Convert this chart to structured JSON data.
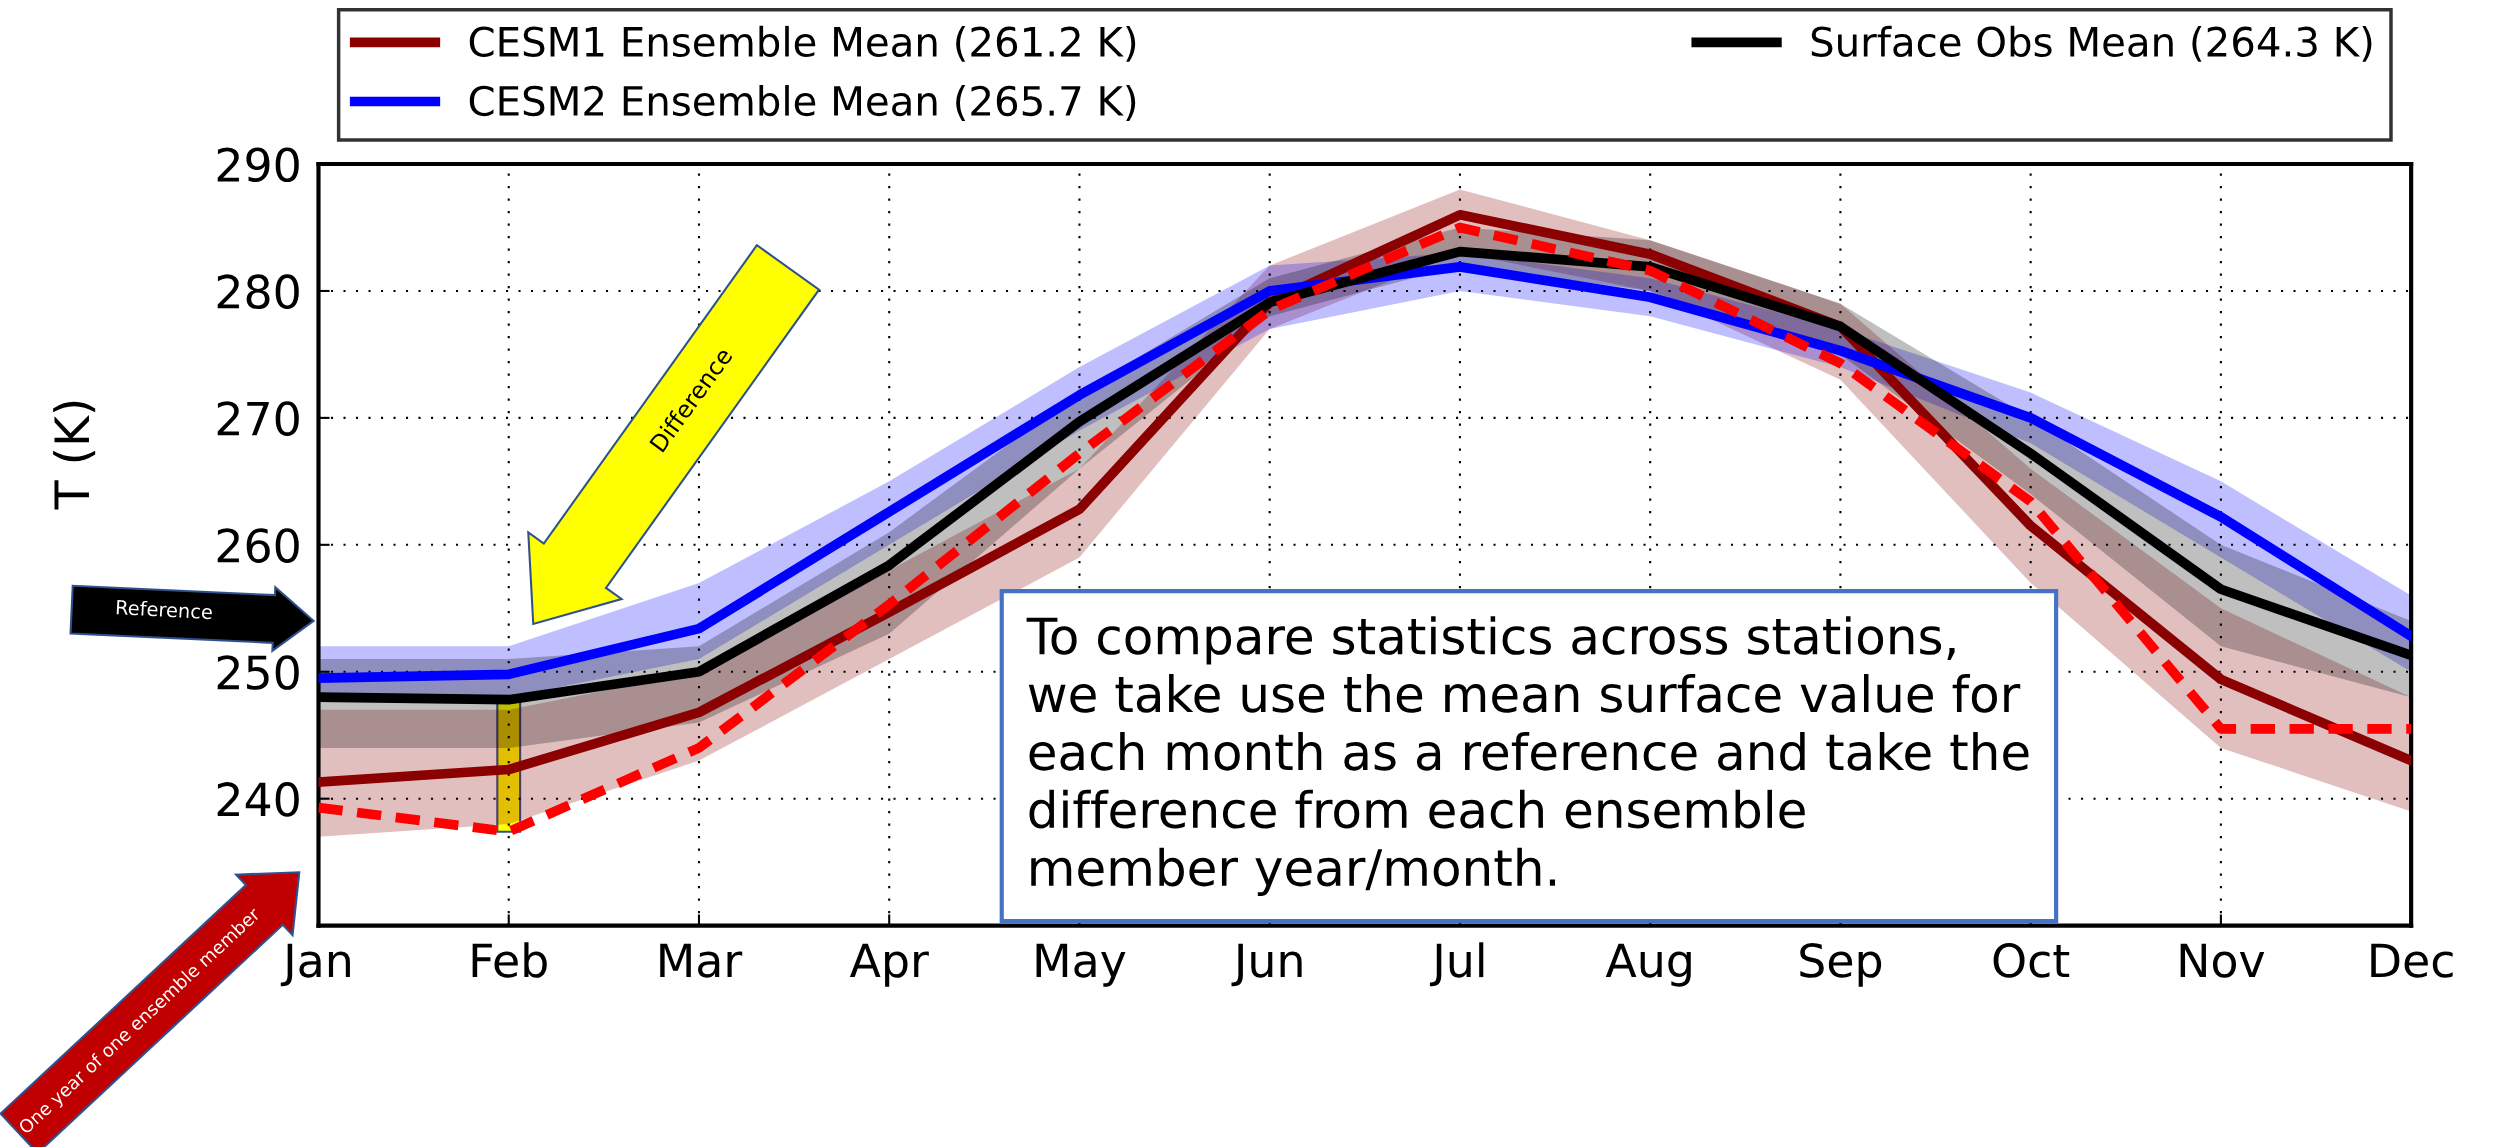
{
  "chart_data": {
    "type": "line",
    "ylabel": "T (K)",
    "categories": [
      "Jan",
      "Feb",
      "Mar",
      "Apr",
      "May",
      "Jun",
      "Jul",
      "Aug",
      "Sep",
      "Oct",
      "Nov",
      "Dec"
    ],
    "series": [
      {
        "name": "CESM1 Ensemble Mean (261.2 K)",
        "color": "#8b0000",
        "values": [
          241.3,
          242.3,
          246.8,
          254.7,
          262.8,
          279.1,
          286.0,
          282.9,
          277.2,
          261.5,
          249.4,
          243.0
        ],
        "lower": [
          237,
          238,
          243,
          251,
          259,
          277,
          283,
          280,
          273,
          257,
          244,
          239
        ],
        "upper": [
          247,
          247,
          250,
          258,
          266,
          282,
          288,
          284,
          279,
          266,
          255,
          248
        ]
      },
      {
        "name": "CESM2 Ensemble Mean (265.7 K)",
        "color": "#0000ff",
        "values": [
          249.5,
          249.8,
          253.4,
          262.6,
          271.8,
          280.0,
          281.9,
          279.5,
          275.3,
          270.0,
          262.2,
          252.8
        ],
        "lower": [
          248,
          248,
          251,
          260,
          269,
          277,
          280,
          278,
          274,
          268,
          259,
          250
        ],
        "upper": [
          252,
          252,
          257,
          265,
          274,
          282,
          283,
          281,
          277,
          272,
          265,
          256
        ]
      },
      {
        "name": "Surface Obs Mean (264.3 K)",
        "color": "#000000",
        "values": [
          248.0,
          247.8,
          250.0,
          258.4,
          269.7,
          279.1,
          283.1,
          281.9,
          277.2,
          267.2,
          256.5,
          251.3
        ],
        "lower": [
          244,
          244,
          246,
          253,
          266,
          278,
          282,
          280,
          275,
          264,
          252,
          248
        ],
        "upper": [
          251,
          251,
          252,
          261,
          272,
          281,
          285,
          284,
          279,
          270,
          260,
          254
        ]
      },
      {
        "color": "#ff0000",
        "line_style": "dashed",
        "values": [
          239.3,
          237.4,
          244.0,
          255.3,
          267.2,
          278.5,
          285.0,
          281.6,
          274.3,
          263.4,
          245.5,
          245.5
        ]
      }
    ],
    "ylim": [
      230,
      290
    ],
    "yticks": [
      {
        "value": 230,
        "label": null
      },
      240,
      250,
      260,
      270,
      280,
      290
    ],
    "grid": true,
    "legend": "top",
    "line_style": "solid",
    "marker": "none",
    "annotations": [
      "Reference",
      "Difference",
      "One year of one ensemble member",
      "To compare statistics across stations,\nwe take use the mean surface value for\neach month as a reference and take the\ndifference from each ensemble\nmember year/month."
    ]
  }
}
